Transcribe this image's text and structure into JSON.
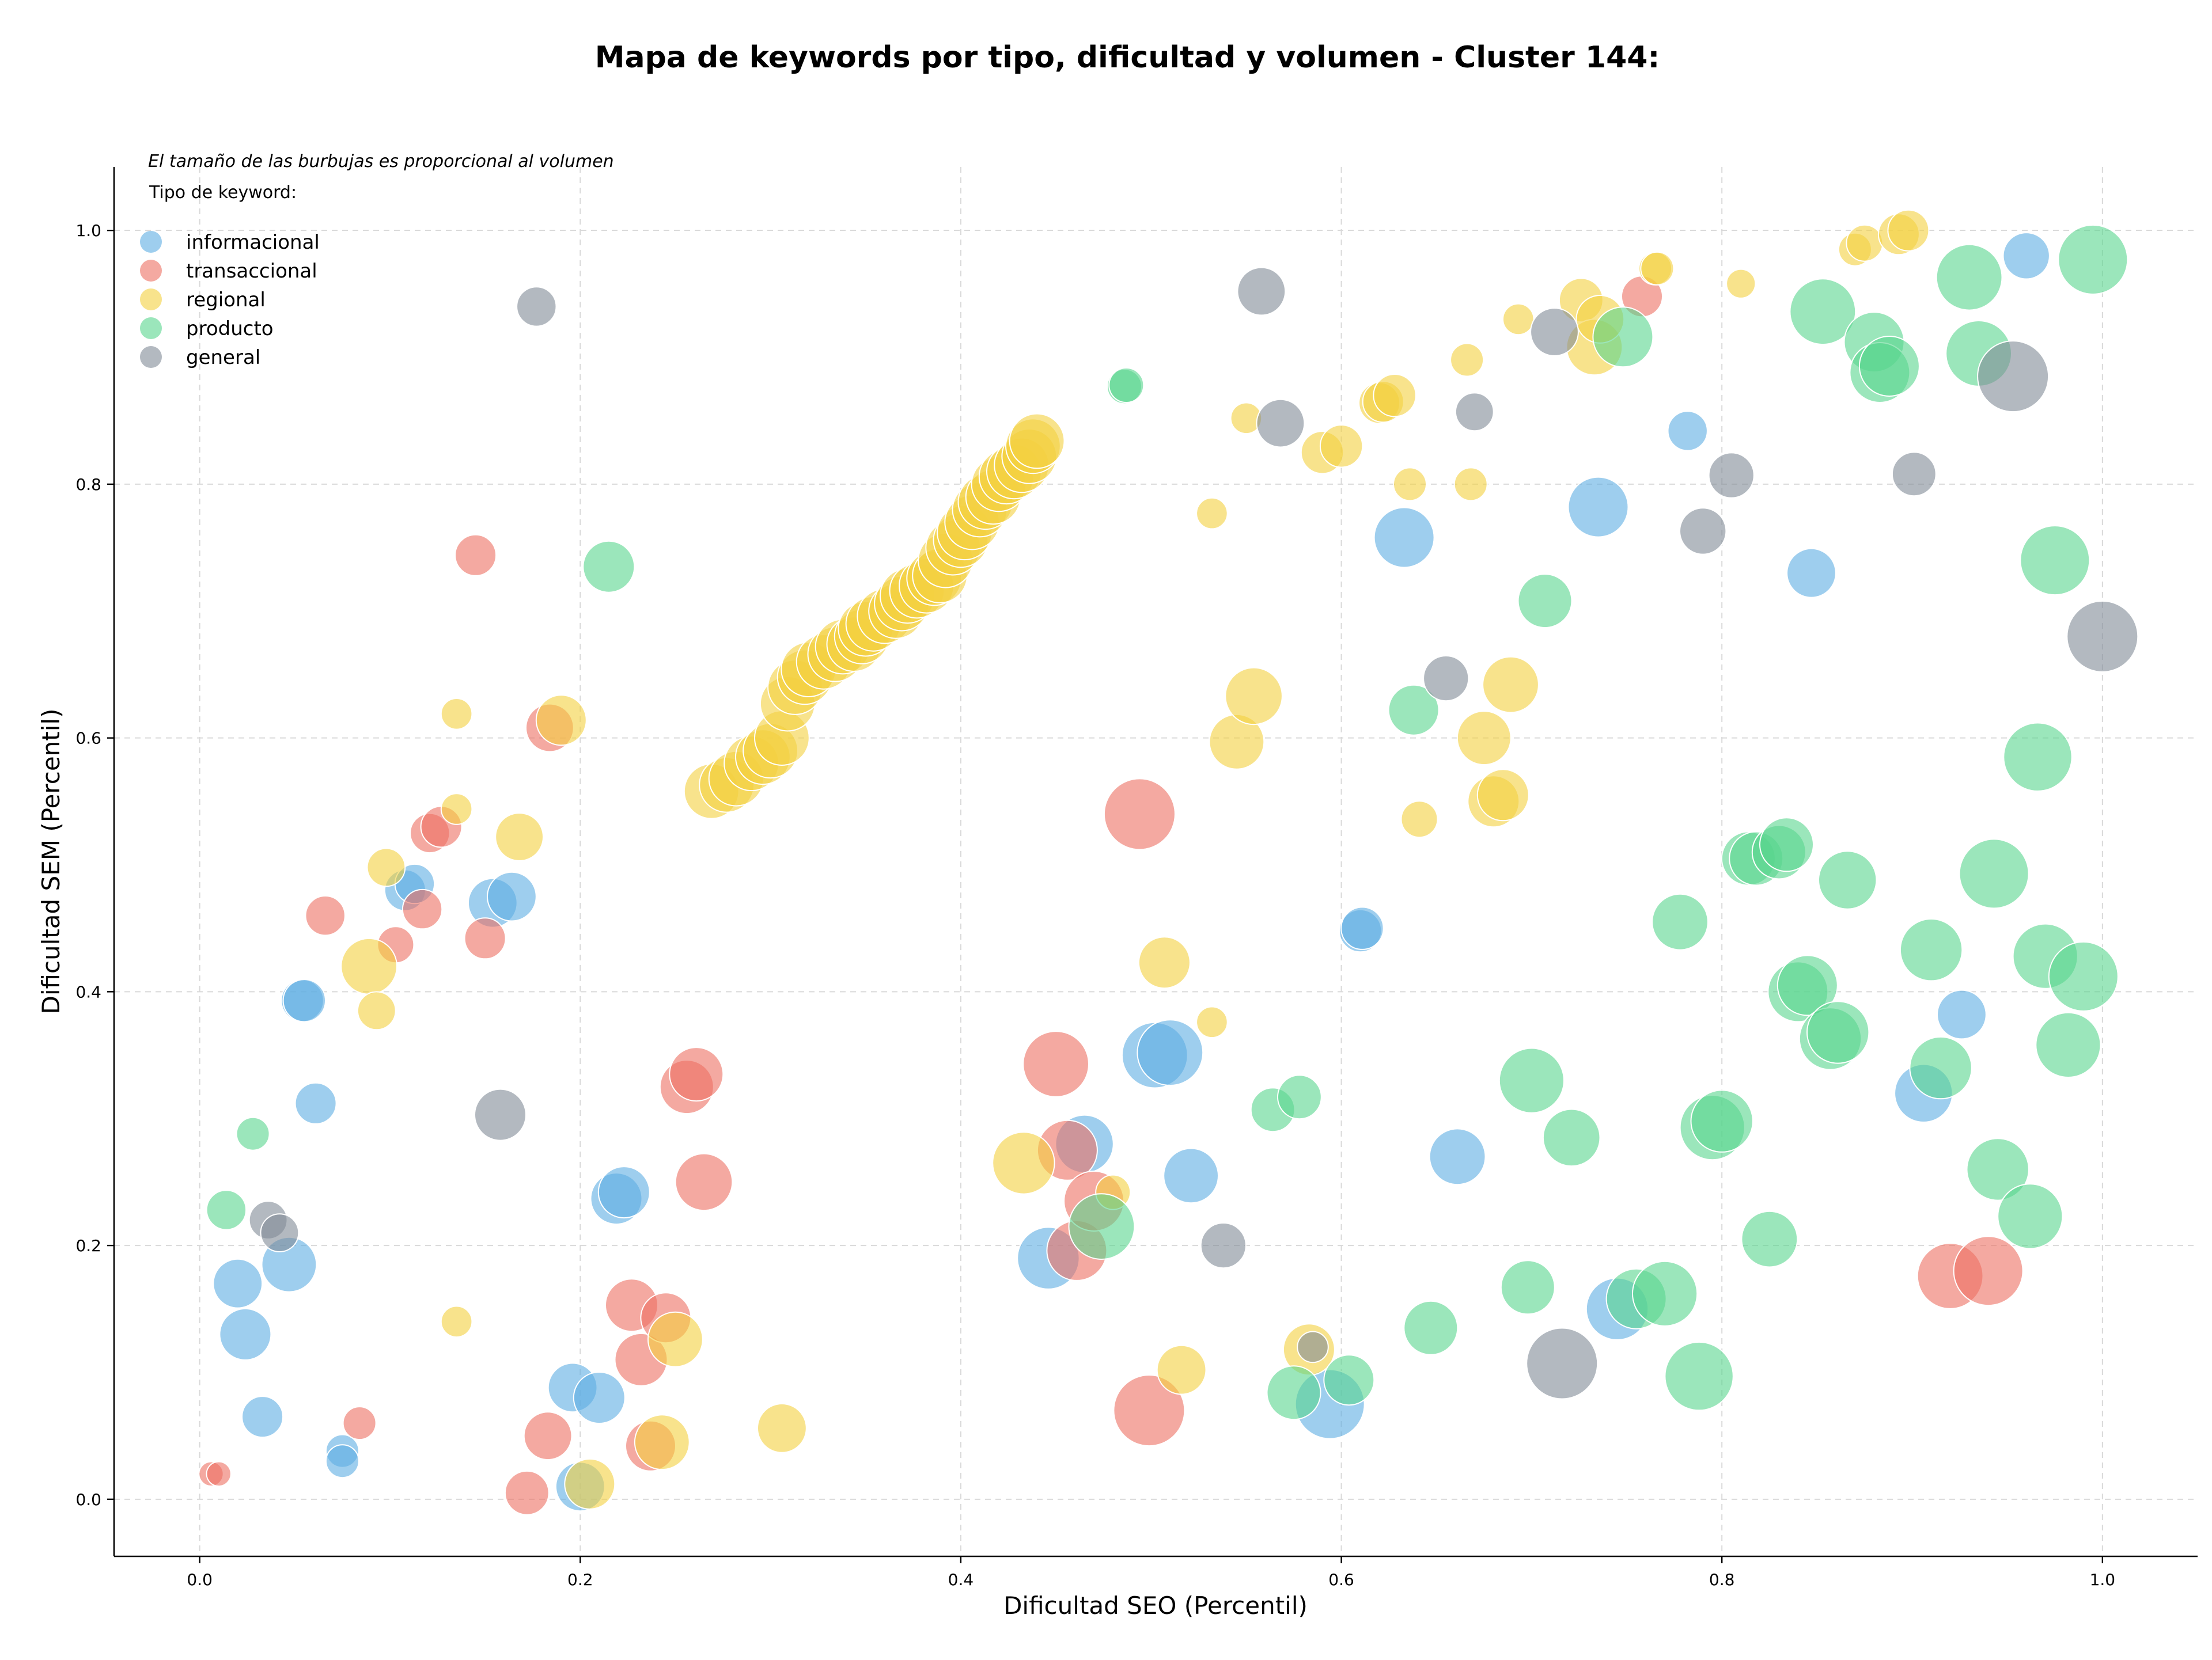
{
  "chart_data": {
    "type": "scatter",
    "title": "Mapa de keywords por tipo, dificultad y volumen - Cluster 144:",
    "xlabel": "Dificultad SEO (Percentil)",
    "ylabel": "Dificultad SEM (Percentil)",
    "xlim": [
      -0.045,
      1.05
    ],
    "ylim": [
      -0.045,
      1.05
    ],
    "xticks": [
      0.0,
      0.2,
      0.4,
      0.6,
      0.8,
      1.0
    ],
    "yticks": [
      0.0,
      0.2,
      0.4,
      0.6,
      0.8,
      1.0
    ],
    "tick_labels": [
      "0.0",
      "0.2",
      "0.4",
      "0.6",
      "0.8",
      "1.0"
    ],
    "grid": true,
    "note": "El tamaño de las burbujas es proporcional al volumen",
    "legend": {
      "title": "Tipo de keyword:",
      "placement": "top-left"
    },
    "series": [
      {
        "name": "informacional",
        "color": "#5DADE2",
        "points": [
          [
            0.02,
            0.17,
            2
          ],
          [
            0.024,
            0.13,
            2.2
          ],
          [
            0.033,
            0.065,
            1.4
          ],
          [
            0.047,
            0.185,
            2.5
          ],
          [
            0.054,
            0.393,
            1.5
          ],
          [
            0.055,
            0.393,
            1.5
          ],
          [
            0.061,
            0.312,
            1.4
          ],
          [
            0.075,
            0.038,
            0.9
          ],
          [
            0.075,
            0.03,
            0.9
          ],
          [
            0.108,
            0.48,
            1.4
          ],
          [
            0.113,
            0.485,
            1.3
          ],
          [
            0.154,
            0.47,
            2
          ],
          [
            0.164,
            0.475,
            2
          ],
          [
            0.196,
            0.088,
            2
          ],
          [
            0.2,
            0.01,
            2
          ],
          [
            0.21,
            0.08,
            2.2
          ],
          [
            0.219,
            0.237,
            2.2
          ],
          [
            0.223,
            0.242,
            2.2
          ],
          [
            0.446,
            0.19,
            3.2
          ],
          [
            0.465,
            0.28,
            2.8
          ],
          [
            0.502,
            0.35,
            3.6
          ],
          [
            0.51,
            0.352,
            3.6
          ],
          [
            0.521,
            0.255,
            2.5
          ],
          [
            0.594,
            0.075,
            4
          ],
          [
            0.61,
            0.448,
            1.5
          ],
          [
            0.611,
            0.45,
            1.5
          ],
          [
            0.633,
            0.758,
            3
          ],
          [
            0.661,
            0.27,
            2.6
          ],
          [
            0.735,
            0.782,
            3
          ],
          [
            0.745,
            0.15,
            3.2
          ],
          [
            0.782,
            0.842,
            1.3
          ],
          [
            0.847,
            0.73,
            2
          ],
          [
            0.906,
            0.32,
            2.8
          ],
          [
            0.926,
            0.382,
            2
          ],
          [
            0.96,
            0.98,
            1.8
          ]
        ]
      },
      {
        "name": "transaccional",
        "color": "#EC7063",
        "points": [
          [
            0.006,
            0.02,
            0.5
          ],
          [
            0.01,
            0.02,
            0.5
          ],
          [
            0.066,
            0.46,
            1.3
          ],
          [
            0.084,
            0.06,
            0.9
          ],
          [
            0.103,
            0.437,
            1.1
          ],
          [
            0.117,
            0.465,
            1.3
          ],
          [
            0.121,
            0.525,
            1.3
          ],
          [
            0.127,
            0.53,
            1.4
          ],
          [
            0.145,
            0.744,
            1.4
          ],
          [
            0.15,
            0.442,
            1.4
          ],
          [
            0.172,
            0.005,
            1.6
          ],
          [
            0.183,
            0.05,
            1.9
          ],
          [
            0.184,
            0.608,
            1.9
          ],
          [
            0.227,
            0.153,
            2.3
          ],
          [
            0.232,
            0.11,
            2.3
          ],
          [
            0.237,
            0.042,
            2.1
          ],
          [
            0.245,
            0.143,
            2.1
          ],
          [
            0.256,
            0.325,
            2.4
          ],
          [
            0.261,
            0.335,
            2.4
          ],
          [
            0.265,
            0.25,
            2.7
          ],
          [
            0.45,
            0.343,
            3.6
          ],
          [
            0.456,
            0.275,
            3
          ],
          [
            0.461,
            0.196,
            3
          ],
          [
            0.47,
            0.235,
            3
          ],
          [
            0.494,
            0.54,
            4.2
          ],
          [
            0.499,
            0.07,
            4.2
          ],
          [
            0.758,
            0.948,
            1.4
          ],
          [
            0.92,
            0.176,
            3.6
          ],
          [
            0.94,
            0.18,
            4
          ]
        ]
      },
      {
        "name": "regional",
        "color": "#F4D03F",
        "points": [
          [
            0.089,
            0.42,
            2.6
          ],
          [
            0.093,
            0.385,
            1.2
          ],
          [
            0.098,
            0.498,
            1.2
          ],
          [
            0.135,
            0.619,
            0.8
          ],
          [
            0.135,
            0.544,
            0.8
          ],
          [
            0.135,
            0.14,
            0.8
          ],
          [
            0.168,
            0.522,
            1.9
          ],
          [
            0.19,
            0.614,
            2.1
          ],
          [
            0.205,
            0.012,
            2.1
          ],
          [
            0.243,
            0.045,
            2.5
          ],
          [
            0.25,
            0.126,
            2.5
          ],
          [
            0.269,
            0.558,
            2.5
          ],
          [
            0.277,
            0.563,
            2.5
          ],
          [
            0.282,
            0.568,
            2.5
          ],
          [
            0.29,
            0.58,
            2.5
          ],
          [
            0.296,
            0.585,
            2.5
          ],
          [
            0.3,
            0.59,
            2.5
          ],
          [
            0.306,
            0.6,
            2.5
          ],
          [
            0.309,
            0.627,
            2.5
          ],
          [
            0.313,
            0.64,
            2.5
          ],
          [
            0.318,
            0.648,
            2.5
          ],
          [
            0.32,
            0.654,
            2.5
          ],
          [
            0.328,
            0.66,
            2.5
          ],
          [
            0.334,
            0.666,
            2.5
          ],
          [
            0.338,
            0.672,
            2.5
          ],
          [
            0.344,
            0.674,
            2.5
          ],
          [
            0.348,
            0.68,
            2.5
          ],
          [
            0.35,
            0.686,
            2.5
          ],
          [
            0.354,
            0.69,
            2.5
          ],
          [
            0.36,
            0.696,
            2.5
          ],
          [
            0.366,
            0.7,
            2.5
          ],
          [
            0.369,
            0.706,
            2.5
          ],
          [
            0.372,
            0.712,
            2.5
          ],
          [
            0.377,
            0.716,
            2.5
          ],
          [
            0.382,
            0.72,
            2.5
          ],
          [
            0.386,
            0.726,
            2.5
          ],
          [
            0.389,
            0.728,
            2.5
          ],
          [
            0.392,
            0.74,
            2.5
          ],
          [
            0.396,
            0.75,
            2.5
          ],
          [
            0.4,
            0.756,
            2.5
          ],
          [
            0.402,
            0.762,
            2.5
          ],
          [
            0.406,
            0.77,
            2.5
          ],
          [
            0.41,
            0.78,
            2.5
          ],
          [
            0.413,
            0.786,
            2.5
          ],
          [
            0.417,
            0.79,
            2.5
          ],
          [
            0.42,
            0.8,
            2.5
          ],
          [
            0.424,
            0.806,
            2.5
          ],
          [
            0.428,
            0.81,
            2.5
          ],
          [
            0.432,
            0.815,
            2.5
          ],
          [
            0.436,
            0.822,
            2.5
          ],
          [
            0.438,
            0.83,
            2.5
          ],
          [
            0.44,
            0.834,
            2.5
          ],
          [
            0.306,
            0.056,
            2
          ],
          [
            0.433,
            0.265,
            3.2
          ],
          [
            0.48,
            0.242,
            1
          ],
          [
            0.507,
            0.423,
            2.2
          ],
          [
            0.516,
            0.102,
            2
          ],
          [
            0.532,
            0.376,
            0.8
          ],
          [
            0.532,
            0.777,
            0.8
          ],
          [
            0.545,
            0.597,
            2.5
          ],
          [
            0.55,
            0.852,
            0.8
          ],
          [
            0.554,
            0.633,
            2.7
          ],
          [
            0.583,
            0.118,
            2.2
          ],
          [
            0.59,
            0.825,
            1.5
          ],
          [
            0.6,
            0.83,
            1.5
          ],
          [
            0.62,
            0.864,
            1.4
          ],
          [
            0.622,
            0.865,
            1.4
          ],
          [
            0.628,
            0.87,
            1.5
          ],
          [
            0.636,
            0.8,
            0.9
          ],
          [
            0.641,
            0.536,
            1.1
          ],
          [
            0.666,
            0.898,
            0.9
          ],
          [
            0.668,
            0.8,
            0.9
          ],
          [
            0.675,
            0.6,
            2.4
          ],
          [
            0.68,
            0.55,
            2.2
          ],
          [
            0.685,
            0.555,
            2.2
          ],
          [
            0.689,
            0.642,
            2.6
          ],
          [
            0.693,
            0.93,
            0.8
          ],
          [
            0.726,
            0.945,
            1.6
          ],
          [
            0.733,
            0.908,
            2.6
          ],
          [
            0.736,
            0.93,
            1.9
          ],
          [
            0.765,
            0.97,
            0.9
          ],
          [
            0.766,
            0.97,
            0.9
          ],
          [
            0.81,
            0.958,
            0.7
          ],
          [
            0.87,
            0.985,
            0.9
          ],
          [
            0.875,
            0.99,
            1.1
          ],
          [
            0.893,
            0.997,
            1.4
          ],
          [
            0.898,
            1.0,
            1.4
          ]
        ]
      },
      {
        "name": "producto",
        "color": "#58D68D",
        "points": [
          [
            0.014,
            0.228,
            1.3
          ],
          [
            0.028,
            0.288,
            0.9
          ],
          [
            0.215,
            0.735,
            2.2
          ],
          [
            0.474,
            0.215,
            3.6
          ],
          [
            0.486,
            0.877,
            1
          ],
          [
            0.487,
            0.878,
            1
          ],
          [
            0.564,
            0.307,
            1.6
          ],
          [
            0.575,
            0.084,
            2.4
          ],
          [
            0.578,
            0.317,
            1.6
          ],
          [
            0.604,
            0.094,
            2.1
          ],
          [
            0.638,
            0.622,
            2.1
          ],
          [
            0.647,
            0.135,
            2.4
          ],
          [
            0.698,
            0.167,
            2.4
          ],
          [
            0.7,
            0.33,
            3.5
          ],
          [
            0.707,
            0.708,
            2.4
          ],
          [
            0.721,
            0.285,
            2.7
          ],
          [
            0.748,
            0.916,
            3
          ],
          [
            0.755,
            0.158,
            3
          ],
          [
            0.77,
            0.162,
            3.5
          ],
          [
            0.778,
            0.455,
            2.6
          ],
          [
            0.788,
            0.097,
            3.9
          ],
          [
            0.795,
            0.293,
            3.5
          ],
          [
            0.8,
            0.298,
            3.2
          ],
          [
            0.814,
            0.505,
            2.4
          ],
          [
            0.818,
            0.505,
            2.4
          ],
          [
            0.825,
            0.205,
            2.6
          ],
          [
            0.83,
            0.51,
            2.4
          ],
          [
            0.834,
            0.516,
            2.4
          ],
          [
            0.84,
            0.4,
            3
          ],
          [
            0.845,
            0.405,
            3
          ],
          [
            0.853,
            0.936,
            3.6
          ],
          [
            0.857,
            0.363,
            3.2
          ],
          [
            0.861,
            0.368,
            3.2
          ],
          [
            0.866,
            0.488,
            2.8
          ],
          [
            0.88,
            0.912,
            3
          ],
          [
            0.883,
            0.888,
            3
          ],
          [
            0.888,
            0.893,
            3
          ],
          [
            0.91,
            0.433,
            3.2
          ],
          [
            0.915,
            0.34,
            3.2
          ],
          [
            0.93,
            0.963,
            3.6
          ],
          [
            0.935,
            0.903,
            3.6
          ],
          [
            0.943,
            0.493,
            4
          ],
          [
            0.945,
            0.26,
            3.2
          ],
          [
            0.962,
            0.223,
            3.5
          ],
          [
            0.966,
            0.585,
            3.9
          ],
          [
            0.97,
            0.428,
            3.5
          ],
          [
            0.975,
            0.74,
            4
          ],
          [
            0.982,
            0.358,
            3.5
          ],
          [
            0.99,
            0.412,
            4
          ],
          [
            0.995,
            0.977,
            4
          ]
        ]
      },
      {
        "name": "general",
        "color": "#808B96",
        "points": [
          [
            0.036,
            0.22,
            1.2
          ],
          [
            0.042,
            0.21,
            1.2
          ],
          [
            0.158,
            0.303,
            2.2
          ],
          [
            0.177,
            0.94,
            1.3
          ],
          [
            0.538,
            0.2,
            1.7
          ],
          [
            0.558,
            0.952,
            1.9
          ],
          [
            0.568,
            0.848,
            1.9
          ],
          [
            0.585,
            0.12,
            0.8
          ],
          [
            0.655,
            0.647,
            1.7
          ],
          [
            0.67,
            0.857,
            1.2
          ],
          [
            0.712,
            0.92,
            1.9
          ],
          [
            0.716,
            0.107,
            4.2
          ],
          [
            0.79,
            0.763,
            1.8
          ],
          [
            0.805,
            0.807,
            1.7
          ],
          [
            0.901,
            0.808,
            1.6
          ],
          [
            0.953,
            0.885,
            4.2
          ],
          [
            1.0,
            0.68,
            4.2
          ]
        ]
      }
    ]
  }
}
